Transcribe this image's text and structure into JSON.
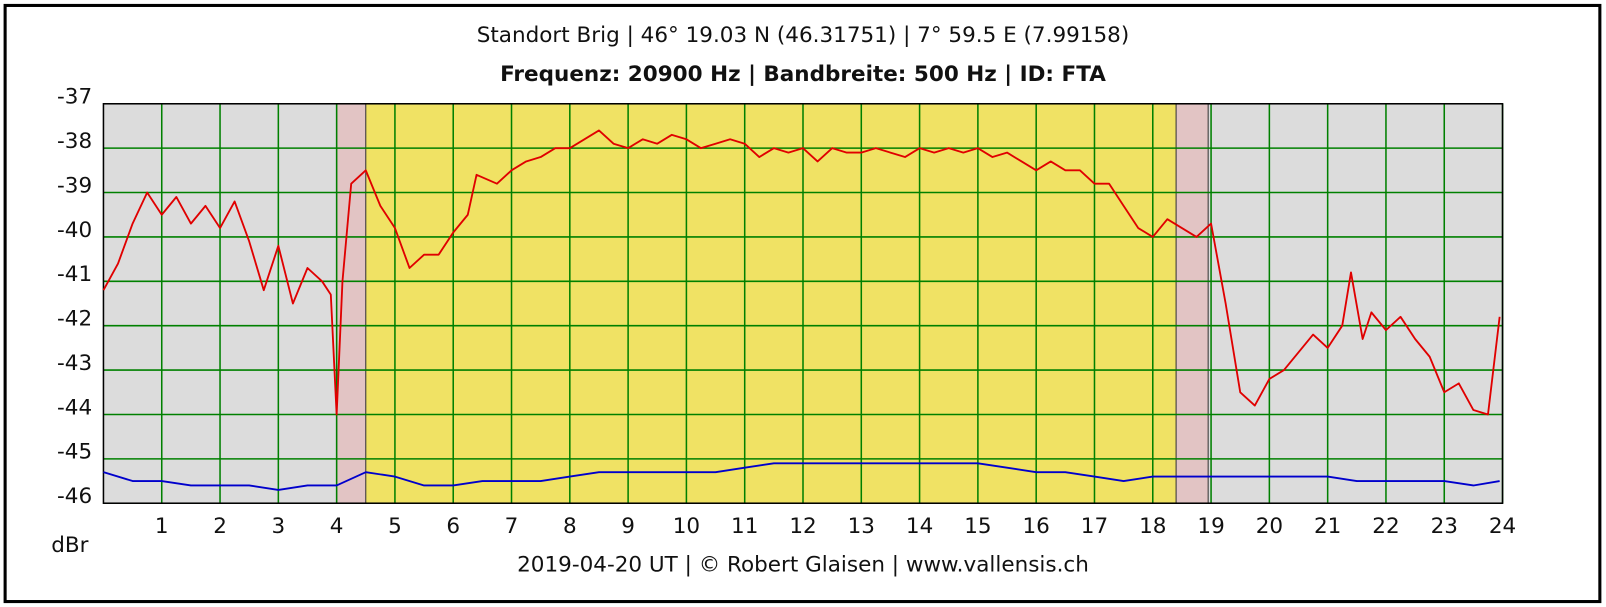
{
  "chart_data": {
    "type": "line",
    "title": "Standort Brig | 46° 19.03 N (46.31751) | 7° 59.5 E (7.99158)",
    "subtitle": "Frequenz: 20900 Hz | Bandbreite: 500 Hz | ID: FTA",
    "y_unit": "dBr",
    "footer": "2019-04-20 UT | © Robert Glaisen | www.vallensis.ch",
    "xlim": [
      0,
      24
    ],
    "ylim": [
      -46,
      -37
    ],
    "xticks": [
      1,
      2,
      3,
      4,
      5,
      6,
      7,
      8,
      9,
      10,
      11,
      12,
      13,
      14,
      15,
      16,
      17,
      18,
      19,
      20,
      21,
      22,
      23,
      24
    ],
    "yticks": [
      -37,
      -38,
      -39,
      -40,
      -41,
      -42,
      -43,
      -44,
      -45,
      -46
    ],
    "grid": true,
    "grid_color": "#008000",
    "regions": [
      {
        "from": 0,
        "to": 4,
        "color": "#dcdcdc"
      },
      {
        "from": 4,
        "to": 4.5,
        "color": "#e2c4c4"
      },
      {
        "from": 4.5,
        "to": 18.4,
        "color": "#f0e264"
      },
      {
        "from": 18.4,
        "to": 18.95,
        "color": "#e2c4c4"
      },
      {
        "from": 18.95,
        "to": 24,
        "color": "#dcdcdc"
      }
    ],
    "series": [
      {
        "color": "#e00000",
        "x": [
          0,
          0.25,
          0.5,
          0.75,
          1,
          1.25,
          1.5,
          1.75,
          2,
          2.25,
          2.5,
          2.75,
          3,
          3.25,
          3.5,
          3.75,
          3.9,
          4,
          4.1,
          4.25,
          4.5,
          4.75,
          5,
          5.25,
          5.5,
          5.75,
          6,
          6.25,
          6.4,
          6.75,
          7,
          7.25,
          7.5,
          7.75,
          8,
          8.25,
          8.5,
          8.75,
          9,
          9.25,
          9.5,
          9.75,
          10,
          10.25,
          10.5,
          10.75,
          11,
          11.25,
          11.5,
          11.75,
          12,
          12.25,
          12.5,
          12.75,
          13,
          13.25,
          13.5,
          13.75,
          14,
          14.25,
          14.5,
          14.75,
          15,
          15.25,
          15.5,
          15.75,
          16,
          16.25,
          16.5,
          16.75,
          17,
          17.25,
          17.5,
          17.75,
          18,
          18.25,
          18.5,
          18.75,
          19,
          19.25,
          19.5,
          19.75,
          20,
          20.25,
          20.5,
          20.75,
          21,
          21.25,
          21.4,
          21.6,
          21.75,
          22,
          22.25,
          22.5,
          22.75,
          23,
          23.25,
          23.5,
          23.75,
          23.95
        ],
        "values": [
          -41.2,
          -40.6,
          -39.7,
          -39.0,
          -39.5,
          -39.1,
          -39.7,
          -39.3,
          -39.8,
          -39.2,
          -40.1,
          -41.2,
          -40.2,
          -41.5,
          -40.7,
          -41.0,
          -41.3,
          -44.0,
          -41.0,
          -38.8,
          -38.5,
          -39.3,
          -39.8,
          -40.7,
          -40.4,
          -40.4,
          -39.9,
          -39.5,
          -38.6,
          -38.8,
          -38.5,
          -38.3,
          -38.2,
          -38.0,
          -38.0,
          -37.8,
          -37.6,
          -37.9,
          -38.0,
          -37.8,
          -37.9,
          -37.7,
          -37.8,
          -38.0,
          -37.9,
          -37.8,
          -37.9,
          -38.2,
          -38.0,
          -38.1,
          -38.0,
          -38.3,
          -38.0,
          -38.1,
          -38.1,
          -38.0,
          -38.1,
          -38.2,
          -38.0,
          -38.1,
          -38.0,
          -38.1,
          -38.0,
          -38.2,
          -38.1,
          -38.3,
          -38.5,
          -38.3,
          -38.5,
          -38.5,
          -38.8,
          -38.8,
          -39.3,
          -39.8,
          -40.0,
          -39.6,
          -39.8,
          -40.0,
          -39.7,
          -41.5,
          -43.5,
          -43.8,
          -43.2,
          -43.0,
          -42.6,
          -42.2,
          -42.5,
          -42.0,
          -40.8,
          -42.3,
          -41.7,
          -42.1,
          -41.8,
          -42.3,
          -42.7,
          -43.5,
          -43.3,
          -43.9,
          -44.0,
          -41.8
        ]
      },
      {
        "color": "#0000cc",
        "x": [
          0,
          0.5,
          1,
          1.5,
          2,
          2.5,
          3,
          3.5,
          4,
          4.5,
          5,
          5.5,
          6,
          6.5,
          7,
          7.5,
          8,
          8.5,
          9,
          9.5,
          10,
          10.5,
          11,
          11.5,
          12,
          12.5,
          13,
          13.5,
          14,
          14.5,
          15,
          15.5,
          16,
          16.5,
          17,
          17.5,
          18,
          18.5,
          19,
          19.5,
          20,
          20.5,
          21,
          21.5,
          22,
          22.5,
          23,
          23.5,
          23.95
        ],
        "values": [
          -45.3,
          -45.5,
          -45.5,
          -45.6,
          -45.6,
          -45.6,
          -45.7,
          -45.6,
          -45.6,
          -45.3,
          -45.4,
          -45.6,
          -45.6,
          -45.5,
          -45.5,
          -45.5,
          -45.4,
          -45.3,
          -45.3,
          -45.3,
          -45.3,
          -45.3,
          -45.2,
          -45.1,
          -45.1,
          -45.1,
          -45.1,
          -45.1,
          -45.1,
          -45.1,
          -45.1,
          -45.2,
          -45.3,
          -45.3,
          -45.4,
          -45.5,
          -45.4,
          -45.4,
          -45.4,
          -45.4,
          -45.4,
          -45.4,
          -45.4,
          -45.5,
          -45.5,
          -45.5,
          -45.5,
          -45.6,
          -45.5
        ]
      }
    ]
  }
}
